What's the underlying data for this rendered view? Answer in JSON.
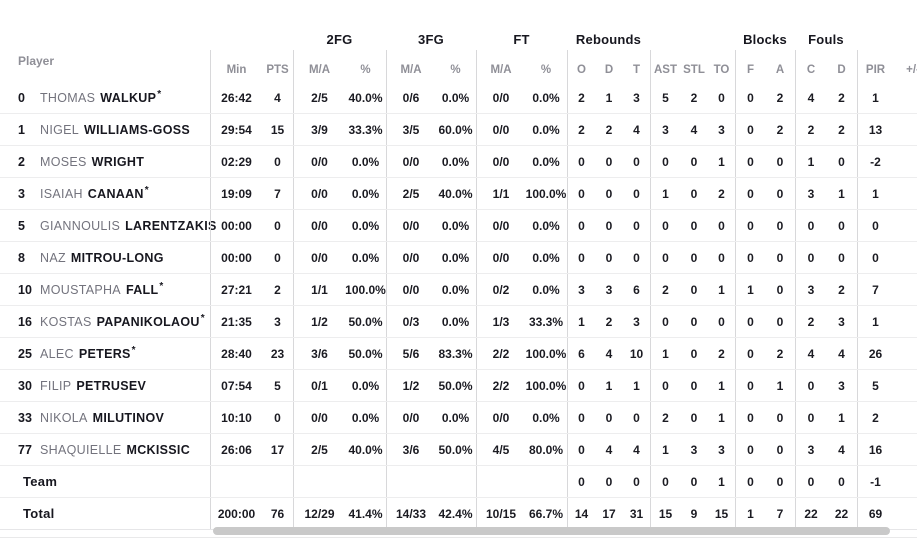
{
  "colors": {
    "text_dark": "#17171f",
    "text_muted": "#73737d",
    "header_muted": "#8f8f97",
    "scrollbar": "#c9c9c9"
  },
  "table": {
    "player_header": "Player",
    "groups": {
      "fg2": "2FG",
      "fg3": "3FG",
      "ft": "FT",
      "rebounds": "Rebounds",
      "blocks": "Blocks",
      "fouls": "Fouls"
    },
    "sub": {
      "min": "Min",
      "pts": "PTS",
      "ma": "M/A",
      "pct": "%",
      "o": "O",
      "d": "D",
      "t": "T",
      "ast": "AST",
      "stl": "STL",
      "to": "TO",
      "f": "F",
      "a": "A",
      "c": "C",
      "fd": "D",
      "pir": "PIR",
      "pm": "+/-"
    },
    "rows": [
      {
        "type": "",
        "num": "0",
        "first": "THOMAS",
        "last": "WALKUP",
        "star": "*",
        "min": "26:42",
        "pts": "4",
        "fg2ma": "2/5",
        "fg2p": "40.0%",
        "fg3ma": "0/6",
        "fg3p": "0.0%",
        "ftma": "0/0",
        "ftp": "0.0%",
        "ro": "2",
        "rd": "1",
        "rt": "3",
        "ast": "5",
        "stl": "2",
        "to": "0",
        "bf": "0",
        "ba": "2",
        "fc": "4",
        "fd": "2",
        "pir": "1",
        "pm": ""
      },
      {
        "type": "",
        "num": "1",
        "first": "NIGEL",
        "last": "WILLIAMS-GOSS",
        "star": "",
        "min": "29:54",
        "pts": "15",
        "fg2ma": "3/9",
        "fg2p": "33.3%",
        "fg3ma": "3/5",
        "fg3p": "60.0%",
        "ftma": "0/0",
        "ftp": "0.0%",
        "ro": "2",
        "rd": "2",
        "rt": "4",
        "ast": "3",
        "stl": "4",
        "to": "3",
        "bf": "0",
        "ba": "2",
        "fc": "2",
        "fd": "2",
        "pir": "13",
        "pm": ""
      },
      {
        "type": "",
        "num": "2",
        "first": "MOSES",
        "last": "WRIGHT",
        "star": "",
        "min": "02:29",
        "pts": "0",
        "fg2ma": "0/0",
        "fg2p": "0.0%",
        "fg3ma": "0/0",
        "fg3p": "0.0%",
        "ftma": "0/0",
        "ftp": "0.0%",
        "ro": "0",
        "rd": "0",
        "rt": "0",
        "ast": "0",
        "stl": "0",
        "to": "1",
        "bf": "0",
        "ba": "0",
        "fc": "1",
        "fd": "0",
        "pir": "-2",
        "pm": ""
      },
      {
        "type": "",
        "num": "3",
        "first": "ISAIAH",
        "last": "CANAAN",
        "star": "*",
        "min": "19:09",
        "pts": "7",
        "fg2ma": "0/0",
        "fg2p": "0.0%",
        "fg3ma": "2/5",
        "fg3p": "40.0%",
        "ftma": "1/1",
        "ftp": "100.0%",
        "ro": "0",
        "rd": "0",
        "rt": "0",
        "ast": "1",
        "stl": "0",
        "to": "2",
        "bf": "0",
        "ba": "0",
        "fc": "3",
        "fd": "1",
        "pir": "1",
        "pm": ""
      },
      {
        "type": "",
        "num": "5",
        "first": "GIANNOULIS",
        "last": "LARENTZAKIS",
        "star": "",
        "min": "00:00",
        "pts": "0",
        "fg2ma": "0/0",
        "fg2p": "0.0%",
        "fg3ma": "0/0",
        "fg3p": "0.0%",
        "ftma": "0/0",
        "ftp": "0.0%",
        "ro": "0",
        "rd": "0",
        "rt": "0",
        "ast": "0",
        "stl": "0",
        "to": "0",
        "bf": "0",
        "ba": "0",
        "fc": "0",
        "fd": "0",
        "pir": "0",
        "pm": ""
      },
      {
        "type": "",
        "num": "8",
        "first": "NAZ",
        "last": "MITROU-LONG",
        "star": "",
        "min": "00:00",
        "pts": "0",
        "fg2ma": "0/0",
        "fg2p": "0.0%",
        "fg3ma": "0/0",
        "fg3p": "0.0%",
        "ftma": "0/0",
        "ftp": "0.0%",
        "ro": "0",
        "rd": "0",
        "rt": "0",
        "ast": "0",
        "stl": "0",
        "to": "0",
        "bf": "0",
        "ba": "0",
        "fc": "0",
        "fd": "0",
        "pir": "0",
        "pm": ""
      },
      {
        "type": "",
        "num": "10",
        "first": "MOUSTAPHA",
        "last": "FALL",
        "star": "*",
        "min": "27:21",
        "pts": "2",
        "fg2ma": "1/1",
        "fg2p": "100.0%",
        "fg3ma": "0/0",
        "fg3p": "0.0%",
        "ftma": "0/2",
        "ftp": "0.0%",
        "ro": "3",
        "rd": "3",
        "rt": "6",
        "ast": "2",
        "stl": "0",
        "to": "1",
        "bf": "1",
        "ba": "0",
        "fc": "3",
        "fd": "2",
        "pir": "7",
        "pm": ""
      },
      {
        "type": "",
        "num": "16",
        "first": "KOSTAS",
        "last": "PAPANIKOLAOU",
        "star": "*",
        "min": "21:35",
        "pts": "3",
        "fg2ma": "1/2",
        "fg2p": "50.0%",
        "fg3ma": "0/3",
        "fg3p": "0.0%",
        "ftma": "1/3",
        "ftp": "33.3%",
        "ro": "1",
        "rd": "2",
        "rt": "3",
        "ast": "0",
        "stl": "0",
        "to": "0",
        "bf": "0",
        "ba": "0",
        "fc": "2",
        "fd": "3",
        "pir": "1",
        "pm": ""
      },
      {
        "type": "",
        "num": "25",
        "first": "ALEC",
        "last": "PETERS",
        "star": "*",
        "min": "28:40",
        "pts": "23",
        "fg2ma": "3/6",
        "fg2p": "50.0%",
        "fg3ma": "5/6",
        "fg3p": "83.3%",
        "ftma": "2/2",
        "ftp": "100.0%",
        "ro": "6",
        "rd": "4",
        "rt": "10",
        "ast": "1",
        "stl": "0",
        "to": "2",
        "bf": "0",
        "ba": "2",
        "fc": "4",
        "fd": "4",
        "pir": "26",
        "pm": ""
      },
      {
        "type": "",
        "num": "30",
        "first": "FILIP",
        "last": "PETRUSEV",
        "star": "",
        "min": "07:54",
        "pts": "5",
        "fg2ma": "0/1",
        "fg2p": "0.0%",
        "fg3ma": "1/2",
        "fg3p": "50.0%",
        "ftma": "2/2",
        "ftp": "100.0%",
        "ro": "0",
        "rd": "1",
        "rt": "1",
        "ast": "0",
        "stl": "0",
        "to": "1",
        "bf": "0",
        "ba": "1",
        "fc": "0",
        "fd": "3",
        "pir": "5",
        "pm": ""
      },
      {
        "type": "",
        "num": "33",
        "first": "NIKOLA",
        "last": "MILUTINOV",
        "star": "",
        "min": "10:10",
        "pts": "0",
        "fg2ma": "0/0",
        "fg2p": "0.0%",
        "fg3ma": "0/0",
        "fg3p": "0.0%",
        "ftma": "0/0",
        "ftp": "0.0%",
        "ro": "0",
        "rd": "0",
        "rt": "0",
        "ast": "2",
        "stl": "0",
        "to": "1",
        "bf": "0",
        "ba": "0",
        "fc": "0",
        "fd": "1",
        "pir": "2",
        "pm": ""
      },
      {
        "type": "",
        "num": "77",
        "first": "SHAQUIELLE",
        "last": "MCKISSIC",
        "star": "",
        "min": "26:06",
        "pts": "17",
        "fg2ma": "2/5",
        "fg2p": "40.0%",
        "fg3ma": "3/6",
        "fg3p": "50.0%",
        "ftma": "4/5",
        "ftp": "80.0%",
        "ro": "0",
        "rd": "4",
        "rt": "4",
        "ast": "1",
        "stl": "3",
        "to": "3",
        "bf": "0",
        "ba": "0",
        "fc": "3",
        "fd": "4",
        "pir": "16",
        "pm": ""
      },
      {
        "type": "t",
        "num": "",
        "first": "",
        "last": "Team",
        "star": "",
        "min": "",
        "pts": "",
        "fg2ma": "",
        "fg2p": "",
        "fg3ma": "",
        "fg3p": "",
        "ftma": "",
        "ftp": "",
        "ro": "0",
        "rd": "0",
        "rt": "0",
        "ast": "0",
        "stl": "0",
        "to": "1",
        "bf": "0",
        "ba": "0",
        "fc": "0",
        "fd": "0",
        "pir": "-1",
        "pm": ""
      },
      {
        "type": "t",
        "num": "",
        "first": "",
        "last": "Total",
        "star": "",
        "min": "200:00",
        "pts": "76",
        "fg2ma": "12/29",
        "fg2p": "41.4%",
        "fg3ma": "14/33",
        "fg3p": "42.4%",
        "ftma": "10/15",
        "ftp": "66.7%",
        "ro": "14",
        "rd": "17",
        "rt": "31",
        "ast": "15",
        "stl": "9",
        "to": "15",
        "bf": "1",
        "ba": "7",
        "fc": "22",
        "fd": "22",
        "pir": "69",
        "pm": ""
      }
    ]
  }
}
